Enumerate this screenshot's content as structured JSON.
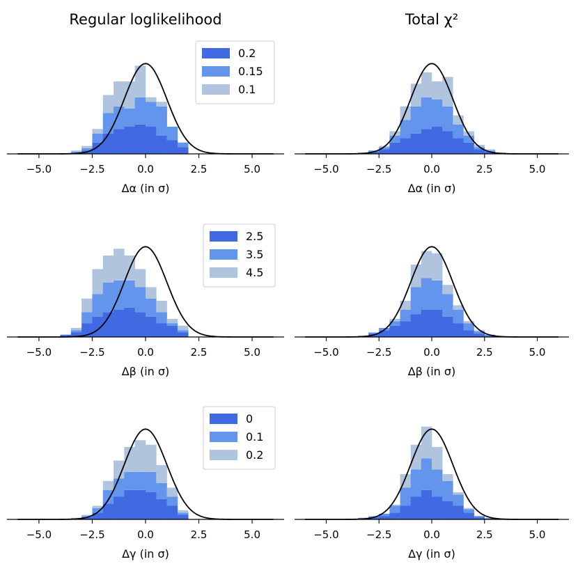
{
  "column_titles": [
    "Regular loglikelihood",
    "Total χ²"
  ],
  "colors": {
    "dark": "#4169E1",
    "mid": "#6495ED",
    "light": "#B0C4DE",
    "gauss": "#000000",
    "axis": "#000000"
  },
  "chart_data": [
    {
      "type": "bar",
      "subtype": "stacked-histogram",
      "row": 0,
      "col": 0,
      "xlabel": "Δα (in σ)",
      "xlim": [
        -6.5,
        6.5
      ],
      "xticks": [
        -5.0,
        -2.5,
        0.0,
        2.5,
        5.0
      ],
      "ylim": [
        0,
        0.45
      ],
      "bin_width": 0.5,
      "bin_start": -4.0,
      "legend": {
        "position": "top-right",
        "entries": [
          "0.2",
          "0.15",
          "0.1"
        ]
      },
      "series": [
        {
          "name": "0.2",
          "color": "dark",
          "values": [
            0,
            0.005,
            0.015,
            0.05,
            0.09,
            0.11,
            0.12,
            0.13,
            0.12,
            0.08,
            0.06,
            0.03,
            0,
            0,
            0,
            0
          ]
        },
        {
          "name": "0.15",
          "color": "mid",
          "values": [
            0,
            0.005,
            0.01,
            0.04,
            0.09,
            0.1,
            0.08,
            0.12,
            0.11,
            0.13,
            0.06,
            0.02,
            0,
            0,
            0,
            0
          ]
        },
        {
          "name": "0.1",
          "color": "light",
          "values": [
            0,
            0.005,
            0.01,
            0.02,
            0.08,
            0.11,
            0.12,
            0.14,
            0.02,
            0.02,
            0,
            0,
            0,
            0,
            0,
            0
          ]
        }
      ],
      "gaussian": {
        "mean": 0,
        "sigma": 1
      }
    },
    {
      "type": "bar",
      "subtype": "stacked-histogram",
      "row": 0,
      "col": 1,
      "xlabel": "Δα (in σ)",
      "xlim": [
        -6.5,
        6.5
      ],
      "xticks": [
        -5.0,
        -2.5,
        0.0,
        2.5,
        5.0
      ],
      "ylim": [
        0,
        0.45
      ],
      "bin_width": 0.5,
      "bin_start": -4.0,
      "series": [
        {
          "name": "0.2",
          "color": "dark",
          "values": [
            0,
            0.005,
            0.01,
            0.02,
            0.05,
            0.07,
            0.09,
            0.11,
            0.12,
            0.1,
            0.07,
            0.05,
            0.02,
            0.01,
            0.005,
            0
          ]
        },
        {
          "name": "0.15",
          "color": "mid",
          "values": [
            0,
            0,
            0.005,
            0.01,
            0.03,
            0.08,
            0.12,
            0.14,
            0.12,
            0.11,
            0.06,
            0.03,
            0.01,
            0.005,
            0,
            0
          ]
        },
        {
          "name": "0.1",
          "color": "light",
          "values": [
            0,
            0,
            0,
            0.005,
            0.02,
            0.06,
            0.1,
            0.11,
            0.08,
            0.13,
            0.04,
            0.02,
            0.01,
            0.005,
            0,
            0
          ]
        }
      ],
      "gaussian": {
        "mean": 0,
        "sigma": 1
      }
    },
    {
      "type": "bar",
      "subtype": "stacked-histogram",
      "row": 1,
      "col": 0,
      "xlabel": "Δβ (in σ)",
      "xlim": [
        -6.5,
        6.5
      ],
      "xticks": [
        -5.0,
        -2.5,
        0.0,
        2.5,
        5.0
      ],
      "ylim": [
        0,
        0.45
      ],
      "bin_width": 0.5,
      "bin_start": -4.0,
      "legend": {
        "position": "top-right",
        "entries": [
          "2.5",
          "3.5",
          "4.5"
        ]
      },
      "series": [
        {
          "name": "2.5",
          "color": "dark",
          "values": [
            0.01,
            0.02,
            0.06,
            0.09,
            0.11,
            0.12,
            0.13,
            0.11,
            0.09,
            0.06,
            0.05,
            0.02,
            0,
            0,
            0,
            0
          ]
        },
        {
          "name": "3.5",
          "color": "mid",
          "values": [
            0,
            0.01,
            0.05,
            0.1,
            0.13,
            0.13,
            0.12,
            0.11,
            0.08,
            0.05,
            0.01,
            0.01,
            0,
            0,
            0,
            0
          ]
        },
        {
          "name": "4.5",
          "color": "light",
          "values": [
            0,
            0.01,
            0.06,
            0.11,
            0.12,
            0.14,
            0.11,
            0.08,
            0.05,
            0.05,
            0.02,
            0.02,
            0,
            0,
            0,
            0
          ]
        }
      ],
      "gaussian": {
        "mean": 0,
        "sigma": 1
      }
    },
    {
      "type": "bar",
      "subtype": "stacked-histogram",
      "row": 1,
      "col": 1,
      "xlabel": "Δβ (in σ)",
      "xlim": [
        -6.5,
        6.5
      ],
      "xticks": [
        -5.0,
        -2.5,
        0.0,
        2.5,
        5.0
      ],
      "ylim": [
        0,
        0.45
      ],
      "bin_width": 0.5,
      "bin_start": -4.0,
      "series": [
        {
          "name": "2.5",
          "color": "dark",
          "values": [
            0,
            0.005,
            0.015,
            0.03,
            0.05,
            0.07,
            0.1,
            0.12,
            0.12,
            0.09,
            0.06,
            0.03,
            0.015,
            0.005,
            0,
            0
          ]
        },
        {
          "name": "3.5",
          "color": "mid",
          "values": [
            0,
            0,
            0.005,
            0.01,
            0.02,
            0.05,
            0.12,
            0.14,
            0.13,
            0.1,
            0.06,
            0.03,
            0.01,
            0.005,
            0,
            0
          ]
        },
        {
          "name": "4.5",
          "color": "light",
          "values": [
            0,
            0,
            0,
            0,
            0.01,
            0.04,
            0.1,
            0.12,
            0.12,
            0.04,
            0.02,
            0.01,
            0.005,
            0,
            0,
            0
          ]
        }
      ],
      "gaussian": {
        "mean": 0,
        "sigma": 1
      }
    },
    {
      "type": "bar",
      "subtype": "stacked-histogram",
      "row": 2,
      "col": 0,
      "xlabel": "Δγ (in σ)",
      "xlim": [
        -6.5,
        6.5
      ],
      "xticks": [
        -5.0,
        -2.5,
        0.0,
        2.5,
        5.0
      ],
      "ylim": [
        0,
        0.45
      ],
      "bin_width": 0.5,
      "bin_start": -4.0,
      "legend": {
        "position": "top-right",
        "entries": [
          "0",
          "0.1",
          "0.2"
        ]
      },
      "series": [
        {
          "name": "0",
          "color": "dark",
          "values": [
            0,
            0.003,
            0.01,
            0.03,
            0.07,
            0.1,
            0.13,
            0.13,
            0.12,
            0.09,
            0.06,
            0.02,
            0,
            0,
            0,
            0
          ]
        },
        {
          "name": "0.1",
          "color": "mid",
          "values": [
            0,
            0.002,
            0.005,
            0.02,
            0.06,
            0.08,
            0.08,
            0.08,
            0.09,
            0.07,
            0.04,
            0.01,
            0,
            0,
            0,
            0
          ]
        },
        {
          "name": "0.2",
          "color": "light",
          "values": [
            0,
            0.002,
            0.005,
            0.01,
            0.04,
            0.08,
            0.11,
            0.14,
            0.12,
            0.08,
            0.04,
            0.01,
            0,
            0,
            0,
            0
          ]
        }
      ],
      "gaussian": {
        "mean": 0,
        "sigma": 1
      }
    },
    {
      "type": "bar",
      "subtype": "stacked-histogram",
      "row": 2,
      "col": 1,
      "xlabel": "Δγ (in σ)",
      "xlim": [
        -6.5,
        6.5
      ],
      "xticks": [
        -5.0,
        -2.5,
        0.0,
        2.5,
        5.0
      ],
      "ylim": [
        0,
        0.45
      ],
      "bin_width": 0.5,
      "bin_start": -4.0,
      "series": [
        {
          "name": "0",
          "color": "dark",
          "values": [
            0,
            0.005,
            0.01,
            0.015,
            0.03,
            0.06,
            0.1,
            0.13,
            0.1,
            0.08,
            0.06,
            0.03,
            0.01,
            0.005,
            0,
            0
          ]
        },
        {
          "name": "0.1",
          "color": "mid",
          "values": [
            0,
            0.002,
            0.004,
            0.01,
            0.03,
            0.08,
            0.12,
            0.14,
            0.12,
            0.09,
            0.05,
            0.015,
            0.005,
            0,
            0,
            0
          ]
        },
        {
          "name": "0.2",
          "color": "light",
          "values": [
            0,
            0,
            0,
            0,
            0.005,
            0.06,
            0.11,
            0.14,
            0.1,
            0.03,
            0.01,
            0.005,
            0,
            0,
            0,
            0
          ]
        }
      ],
      "gaussian": {
        "mean": 0,
        "sigma": 1
      }
    }
  ]
}
